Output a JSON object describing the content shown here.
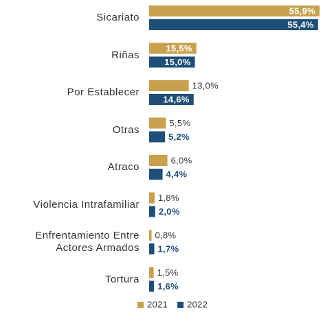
{
  "chart_data": {
    "type": "bar",
    "orientation": "horizontal",
    "categories": [
      "Sicariato",
      "Riñas",
      "Por Establecer",
      "Otras",
      "Atraco",
      "Violencia Intrafamiliar",
      "Enfrentamiento Entre Actores Armados",
      "Tortura"
    ],
    "series": [
      {
        "name": "2021",
        "color": "#c9a04e",
        "values": [
          55.9,
          15.5,
          13.0,
          5.5,
          6.0,
          1.8,
          0.8,
          1.5
        ],
        "value_labels": [
          "55,9%",
          "15,5%",
          "13,0%",
          "5,5%",
          "6,0%",
          "1,8%",
          "0,8%",
          "1,5%"
        ]
      },
      {
        "name": "2022",
        "color": "#1f4e79",
        "values": [
          55.4,
          15.0,
          14.6,
          5.2,
          4.4,
          2.0,
          1.7,
          1.6
        ],
        "value_labels": [
          "55,4%",
          "15,0%",
          "14,6%",
          "5,2%",
          "4,4%",
          "2,0%",
          "1,7%",
          "1,6%"
        ]
      }
    ],
    "legend": "bottom"
  }
}
